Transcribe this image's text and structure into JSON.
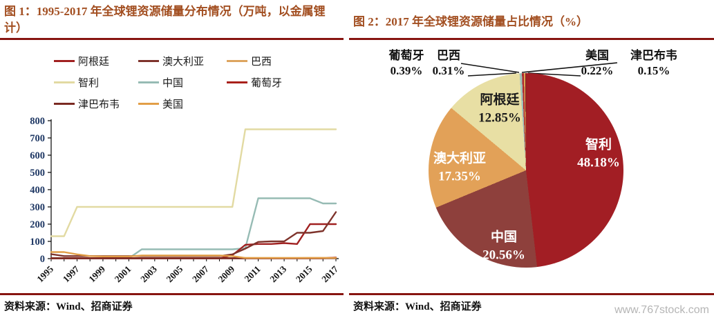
{
  "page": {
    "figure1_title": "图 1：1995-2017 年全球锂资源储量分布情况（万吨，以金属锂计）",
    "figure2_title": "图 2：2017 年全球锂资源储量占比情况（%）",
    "source_left": "资料来源：Wind、招商证券",
    "source_right": "资料来源：Wind、招商证券",
    "watermark": "www.767stock.com",
    "accent_rule_color": "#871410",
    "title_color": "#A24E20"
  },
  "chart_data": [
    {
      "type": "line",
      "title": "1995-2017 年全球锂资源储量分布情况（万吨，以金属锂计）",
      "xlabel": "",
      "ylabel": "",
      "x": [
        1995,
        1996,
        1997,
        1998,
        1999,
        2000,
        2001,
        2002,
        2003,
        2004,
        2005,
        2006,
        2007,
        2008,
        2009,
        2010,
        2011,
        2012,
        2013,
        2014,
        2015,
        2016,
        2017
      ],
      "xticks": [
        1995,
        1997,
        1999,
        2001,
        2003,
        2005,
        2007,
        2009,
        2011,
        2013,
        2015,
        2017
      ],
      "ylim": [
        0,
        800
      ],
      "yticks": [
        0,
        100,
        200,
        300,
        400,
        500,
        600,
        700,
        800
      ],
      "grid": false,
      "legend_position": "top",
      "series": [
        {
          "id": "argentina",
          "name": "阿根廷",
          "color": "#A02020",
          "values": [
            2,
            2,
            2,
            2,
            2,
            2,
            2,
            2,
            2,
            2,
            2,
            2,
            2,
            2,
            20,
            80,
            85,
            85,
            90,
            85,
            200,
            200,
            200
          ]
        },
        {
          "id": "australia",
          "name": "澳大利亚",
          "color": "#7E332B",
          "values": [
            26,
            15,
            15,
            15,
            15,
            15,
            15,
            15,
            15,
            15,
            15,
            15,
            15,
            15,
            25,
            58,
            97,
            100,
            100,
            150,
            150,
            160,
            270
          ]
        },
        {
          "id": "brazil",
          "name": "巴西",
          "color": "#DDA45F",
          "values": [
            3,
            3,
            3,
            3,
            3,
            3,
            3,
            3,
            3,
            3,
            3,
            3,
            3,
            3,
            3,
            4,
            4,
            4,
            4,
            4,
            4.8,
            4.8,
            4.8
          ]
        },
        {
          "id": "chile",
          "name": "智利",
          "color": "#E2DAA2",
          "values": [
            130,
            130,
            300,
            300,
            300,
            300,
            300,
            300,
            300,
            300,
            300,
            300,
            300,
            300,
            300,
            750,
            750,
            750,
            750,
            750,
            750,
            750,
            750
          ]
        },
        {
          "id": "china",
          "name": "中国",
          "color": "#96BBB4",
          "values": [
            2,
            2,
            2,
            2,
            2,
            2,
            2,
            54,
            54,
            54,
            54,
            54,
            54,
            54,
            54,
            60,
            350,
            350,
            350,
            350,
            350,
            320,
            320
          ]
        },
        {
          "id": "portugal",
          "name": "葡萄牙",
          "color": "#A8201A",
          "values": [
            2,
            2,
            2,
            2,
            2,
            2,
            2,
            2,
            2,
            2,
            2,
            2,
            2,
            2,
            2,
            2,
            2,
            2,
            2,
            2,
            2,
            2,
            6
          ]
        },
        {
          "id": "zimbabwe",
          "name": "津巴布韦",
          "color": "#7A2A22",
          "values": [
            2.3,
            2.3,
            2.3,
            2.3,
            2.3,
            2.3,
            2.3,
            2.3,
            2.3,
            2.3,
            2.3,
            2.3,
            2.3,
            2.3,
            2.3,
            2.3,
            2.3,
            2.3,
            2.3,
            2.3,
            2.3,
            2.3,
            2.3
          ]
        },
        {
          "id": "usa",
          "name": "美国",
          "color": "#E29E47",
          "values": [
            38,
            38,
            25,
            15,
            13,
            13,
            13,
            18,
            18,
            18,
            18,
            18,
            18,
            18,
            15,
            3.5,
            3.5,
            3.5,
            3.5,
            3.5,
            3.5,
            3.5,
            3.5
          ]
        }
      ]
    },
    {
      "type": "pie",
      "title": "2017 年全球锂资源储量占比情况（%）",
      "slices": [
        {
          "id": "chile",
          "name": "智利",
          "pct": 48.18,
          "color": "#A21E24",
          "label_style": "inside-white"
        },
        {
          "id": "china",
          "name": "中国",
          "pct": 20.56,
          "color": "#8E403C",
          "label_style": "inside-white"
        },
        {
          "id": "australia",
          "name": "澳大利亚",
          "pct": 17.35,
          "color": "#E2A158",
          "label_style": "inside-white"
        },
        {
          "id": "argentina",
          "name": "阿根廷",
          "pct": 12.85,
          "color": "#E8DFA4",
          "label_style": "inside-black"
        },
        {
          "id": "portugal",
          "name": "葡萄牙",
          "pct": 0.39,
          "color": "#9FC2BB",
          "label_style": "outside"
        },
        {
          "id": "brazil",
          "name": "巴西",
          "pct": 0.31,
          "color": "#B02A2E",
          "label_style": "outside"
        },
        {
          "id": "usa",
          "name": "美国",
          "pct": 0.22,
          "color": "#E0A353",
          "label_style": "outside"
        },
        {
          "id": "zimbabwe",
          "name": "津巴布韦",
          "pct": 0.15,
          "color": "#7A2C24",
          "label_style": "outside"
        }
      ]
    }
  ]
}
